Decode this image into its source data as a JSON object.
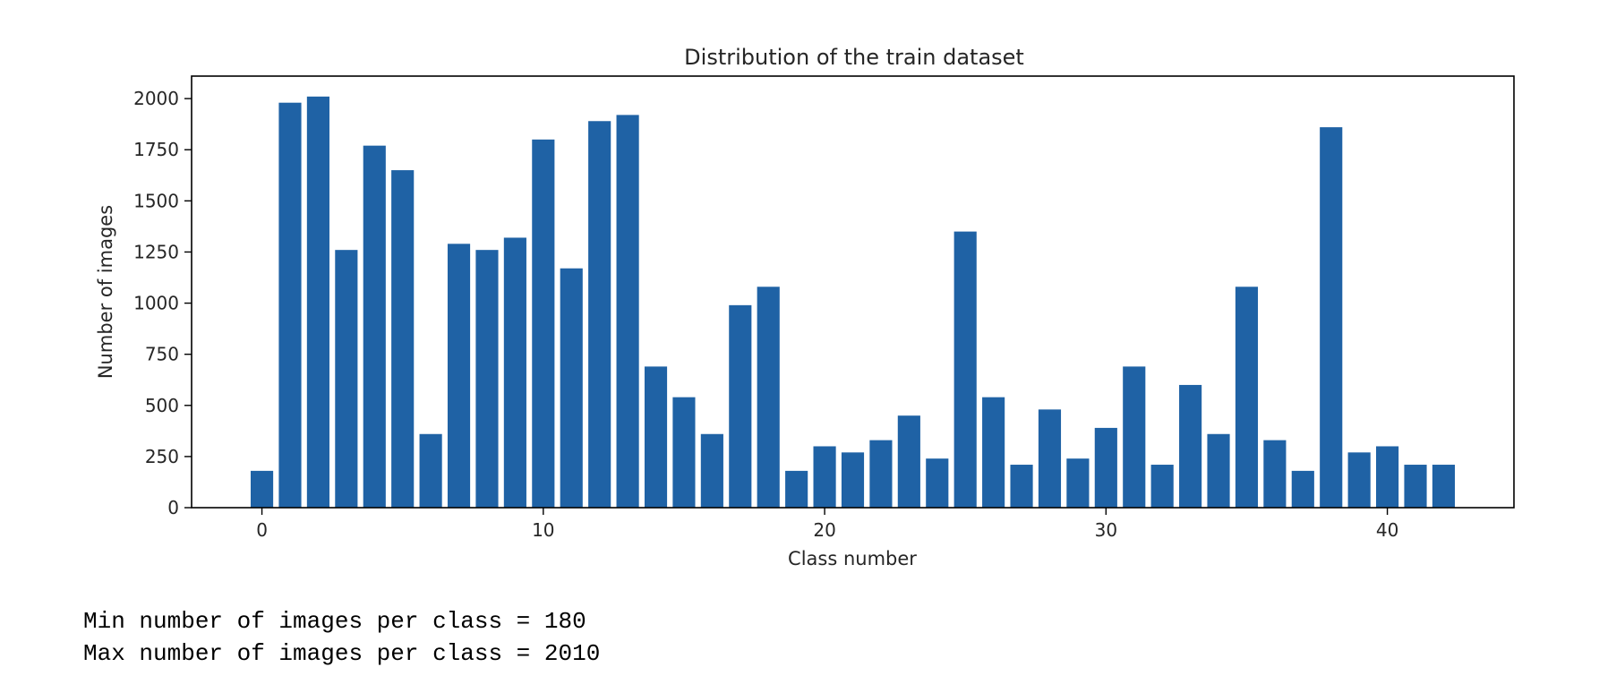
{
  "chart_data": {
    "type": "bar",
    "title": "Distribution of the train dataset",
    "xlabel": "Class number",
    "ylabel": "Number of images",
    "x": [
      0,
      1,
      2,
      3,
      4,
      5,
      6,
      7,
      8,
      9,
      10,
      11,
      12,
      13,
      14,
      15,
      16,
      17,
      18,
      19,
      20,
      21,
      22,
      23,
      24,
      25,
      26,
      27,
      28,
      29,
      30,
      31,
      32,
      33,
      34,
      35,
      36,
      37,
      38,
      39,
      40,
      41,
      42
    ],
    "values": [
      180,
      1980,
      2010,
      1260,
      1770,
      1650,
      360,
      1290,
      1260,
      1320,
      1800,
      1170,
      1890,
      1920,
      690,
      540,
      360,
      990,
      1080,
      180,
      300,
      270,
      330,
      450,
      240,
      1350,
      540,
      210,
      480,
      240,
      390,
      690,
      210,
      600,
      360,
      1080,
      330,
      180,
      1860,
      270,
      300,
      210,
      210
    ],
    "xlim": [
      -2.5,
      44.5
    ],
    "ylim": [
      0,
      2110
    ],
    "xticks": [
      0,
      10,
      20,
      30,
      40
    ],
    "yticks": [
      0,
      250,
      500,
      750,
      1000,
      1250,
      1500,
      1750,
      2000
    ],
    "bar_color": "#1f62a5",
    "grid": false,
    "legend": "none"
  },
  "output": {
    "min_line": "Min number of images per class = 180",
    "max_line": "Max number of images per class = 2010"
  }
}
